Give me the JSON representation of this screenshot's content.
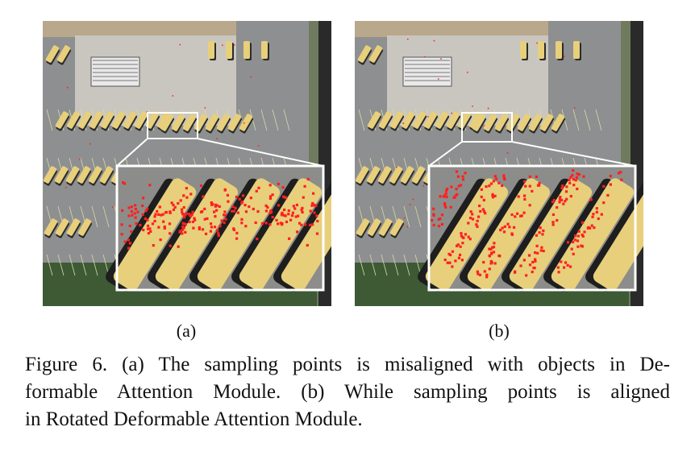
{
  "figure": {
    "panels": [
      {
        "id": "a",
        "label": "(a)"
      },
      {
        "id": "b",
        "label": "(b)"
      }
    ],
    "caption_lines": [
      "Figure 6. (a) The sampling points is misaligned with objects in De-",
      "formable Attention Module. (b) While sampling points is aligned",
      "in Rotated Deformable Attention Module."
    ]
  },
  "colors": {
    "pavement": "#8e8f90",
    "roof": "#c9c6c0",
    "bus": "#e7cf7c",
    "grass": "#3d5a35",
    "point": "#ff2020",
    "frame": "#ffffff"
  }
}
